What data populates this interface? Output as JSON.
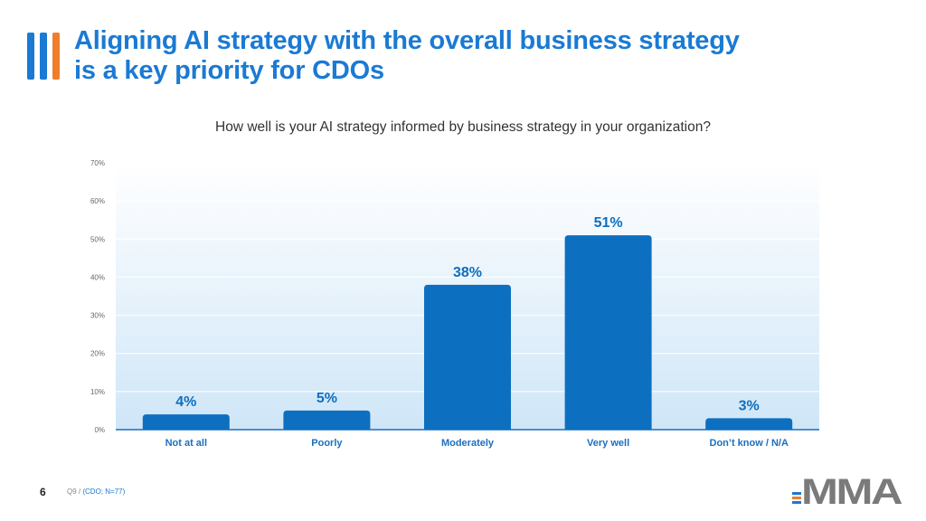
{
  "title_line1": "Aligning AI strategy with the overall business strategy",
  "title_line2": "is a key priority for CDOs",
  "colors": {
    "accent_blue": "#1a7ad4",
    "bar": "#0d6fbf",
    "accent_orange": "#f07d2c",
    "logo_gray": "#7a7a7a"
  },
  "footer": {
    "page_number": "6",
    "question_ref": "Q9 /",
    "source": "(CDO; N=77)"
  },
  "logo_text": "MMA",
  "chart_data": {
    "type": "bar",
    "title": "How well is your AI strategy informed by business strategy in your organization?",
    "categories": [
      "Not at all",
      "Poorly",
      "Moderately",
      "Very well",
      "Don’t know / N/A"
    ],
    "values": [
      4,
      5,
      38,
      51,
      3
    ],
    "value_labels": [
      "4%",
      "5%",
      "38%",
      "51%",
      "3%"
    ],
    "ylim": [
      0,
      70
    ],
    "yticks": [
      0,
      10,
      20,
      30,
      40,
      50,
      60,
      70
    ],
    "ytick_labels": [
      "0%",
      "10%",
      "20%",
      "30%",
      "40%",
      "50%",
      "60%",
      "70%"
    ],
    "grid": true,
    "xlabel": "",
    "ylabel": ""
  }
}
